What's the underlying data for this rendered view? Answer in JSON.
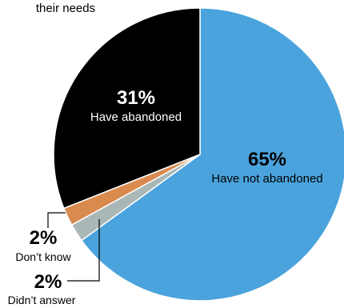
{
  "title_fragment": "their needs",
  "chart_data": {
    "type": "pie",
    "slices": [
      {
        "label": "Have not abandoned",
        "value": 65,
        "pct_text": "65%",
        "color": "#4aa3dd"
      },
      {
        "label": "Didn’t answer",
        "value": 2,
        "pct_text": "2%",
        "color": "#a9b8b6"
      },
      {
        "label": "Don’t know",
        "value": 2,
        "pct_text": "2%",
        "color": "#d98a4e"
      },
      {
        "label": "Have abandoned",
        "value": 31,
        "pct_text": "31%",
        "color": "#000000"
      }
    ]
  }
}
